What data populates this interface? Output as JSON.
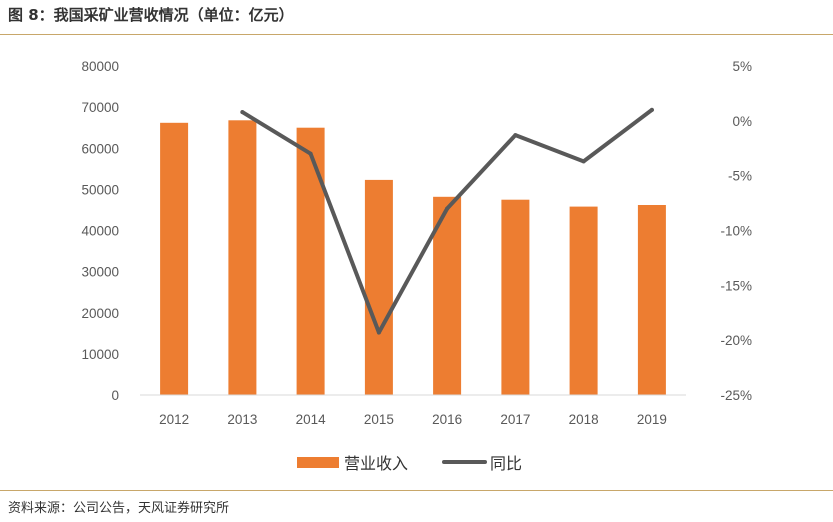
{
  "figure": {
    "title": "图 8：我国采矿业营收情况（单位：亿元）",
    "source": "资料来源：公司公告，天风证券研究所"
  },
  "chart_data": {
    "type": "bar",
    "title": "我国采矿业营收情况（单位：亿元）",
    "categories": [
      "2012",
      "2013",
      "2014",
      "2015",
      "2016",
      "2017",
      "2018",
      "2019"
    ],
    "series": [
      {
        "name": "营业收入",
        "type": "bar",
        "axis": "left",
        "color": "#ed7d31",
        "values": [
          66200,
          66800,
          65000,
          52300,
          48200,
          47500,
          45800,
          46200
        ]
      },
      {
        "name": "同比",
        "type": "line",
        "axis": "right",
        "color": "#595959",
        "values": [
          null,
          0.8,
          -3.0,
          -19.3,
          -8.0,
          -1.3,
          -3.7,
          1.0
        ]
      }
    ],
    "y_left": {
      "min": 0,
      "max": 80000,
      "step": 10000,
      "ticks": [
        "0",
        "10000",
        "20000",
        "30000",
        "40000",
        "50000",
        "60000",
        "70000",
        "80000"
      ]
    },
    "y_right": {
      "min": -25,
      "max": 5,
      "step": 5,
      "ticks": [
        "-25%",
        "-20%",
        "-15%",
        "-10%",
        "-5%",
        "0%",
        "5%"
      ]
    },
    "legend": {
      "position": "bottom-center",
      "entries": [
        "营业收入",
        "同比"
      ]
    },
    "grid": false
  }
}
